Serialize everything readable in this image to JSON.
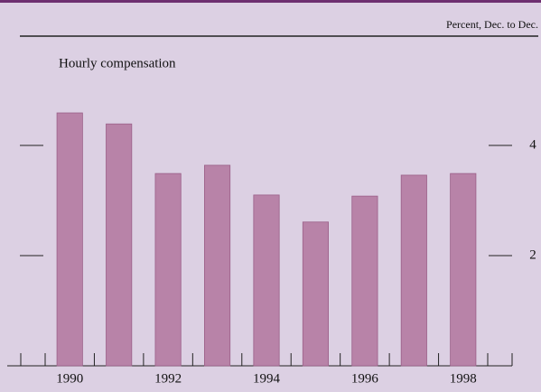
{
  "chart_data": {
    "type": "bar",
    "title": "Hourly compensation",
    "subtitle": "Percent, Dec. to Dec.",
    "categories": [
      "1990",
      null,
      "1992",
      null,
      "1994",
      null,
      "1996",
      null,
      "1998"
    ],
    "values": [
      4.59,
      4.39,
      3.49,
      3.64,
      3.1,
      2.61,
      3.08,
      3.46,
      3.49
    ],
    "color": "#b883a8",
    "ylim": [
      0,
      6
    ],
    "yticks": [
      2,
      4
    ]
  }
}
